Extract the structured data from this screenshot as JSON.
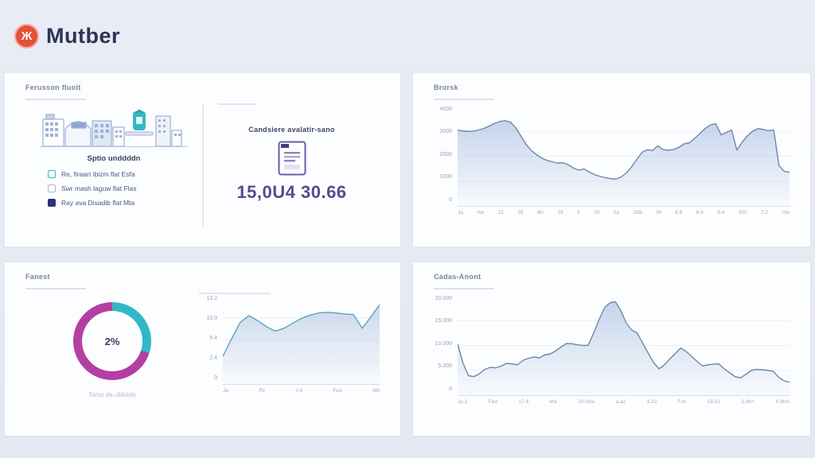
{
  "brand": {
    "name": "Mutber",
    "logo_glyph": "Ж",
    "logo_color": "#e44f39"
  },
  "cards": {
    "spots": {
      "title": "Ferusson fluoit",
      "illustration_caption": "Sptio unddddn",
      "items": [
        {
          "label": "Re, firaart ibizm flat Esfa",
          "checkbox": "teal-outline"
        },
        {
          "label": "Swr mash laguw flat Flas",
          "checkbox": "gray-outline"
        },
        {
          "label": "Ray ava Disadib flat Mta",
          "checkbox": "filled"
        }
      ],
      "right": {
        "caption": "Candsiere avalatir-sano",
        "value": "15,0U4 30.66"
      }
    },
    "brorsk": {
      "title": "Brorsk"
    },
    "fanest": {
      "title": "Fanest",
      "donut": {
        "percent_label": "2%",
        "caption": "Tarso da ublidaly",
        "teal_pct": 30,
        "magenta_pct": 70,
        "teal": "#31b8c6",
        "magenta": "#b43fa2"
      }
    },
    "cadas": {
      "title": "Cadas-Anont"
    }
  },
  "chart_data": [
    {
      "type": "area",
      "title": "Brorsk",
      "line": "#6e88ab",
      "fill": "#aec3e4",
      "ylim": [
        0,
        4000
      ],
      "y_labels": [
        "4000",
        "3000",
        "2000",
        "1000",
        "0"
      ],
      "x_labels": [
        "Ja",
        "Aw",
        "22",
        "35",
        "Bn",
        "18",
        "9",
        "20",
        "2a",
        "Obk",
        "W",
        "6.8",
        "6.9",
        "8.4",
        "302",
        "7.2",
        "Uw"
      ],
      "values": [
        3050,
        3020,
        3000,
        3010,
        3060,
        3120,
        3220,
        3320,
        3400,
        3430,
        3380,
        3150,
        2820,
        2480,
        2230,
        2060,
        1920,
        1830,
        1780,
        1720,
        1740,
        1660,
        1520,
        1440,
        1490,
        1360,
        1260,
        1190,
        1140,
        1100,
        1080,
        1160,
        1320,
        1570,
        1870,
        2160,
        2260,
        2230,
        2420,
        2270,
        2240,
        2270,
        2360,
        2500,
        2540,
        2720,
        2920,
        3120,
        3260,
        3310,
        2860,
        2960,
        3060,
        2250,
        2560,
        2820,
        3010,
        3110,
        3080,
        3030,
        3060,
        1620,
        1390,
        1360
      ]
    },
    {
      "type": "area",
      "title": "",
      "line": "#57a5c0",
      "fill": "#b5c8e3",
      "ylim": [
        0,
        16
      ],
      "y_labels": [
        "13.2",
        "10.0",
        "5.4",
        "2.4",
        "0"
      ],
      "x_labels": [
        "Ja",
        "Fb",
        "J-4",
        "Fed",
        "Mb"
      ],
      "values": [
        5.0,
        8.2,
        11.2,
        12.4,
        11.5,
        10.4,
        9.6,
        10.1,
        11.0,
        11.9,
        12.5,
        12.9,
        13.0,
        12.9,
        12.7,
        12.6,
        10.1,
        12.2,
        14.4
      ]
    },
    {
      "type": "area",
      "title": "Cadas-Anont",
      "line": "#6e88ab",
      "fill": "#aec3e4",
      "ylim": [
        0,
        20000
      ],
      "y_labels": [
        "20.000",
        "15.000",
        "10.000",
        "5.000",
        "0"
      ],
      "x_labels": [
        "Ja 2",
        "Fed",
        "17.4",
        "Ma",
        "20-Nov",
        "a.a2",
        "3.32",
        "F.m",
        "19.51",
        "3.4b+",
        "4.3km"
      ],
      "values": [
        10300,
        6400,
        3900,
        3750,
        4300,
        5200,
        5600,
        5500,
        5850,
        6400,
        6300,
        6100,
        7000,
        7400,
        7700,
        7500,
        8100,
        8300,
        8900,
        9700,
        10400,
        10350,
        10150,
        10000,
        10050,
        12500,
        15200,
        17600,
        18600,
        18800,
        17000,
        14500,
        13100,
        12500,
        10500,
        8500,
        6600,
        5300,
        6100,
        7300,
        8400,
        9500,
        8800,
        7800,
        6800,
        5900,
        6100,
        6250,
        6300,
        5300,
        4500,
        3700,
        3500,
        4200,
        5000,
        5200,
        5100,
        5000,
        4800,
        3600,
        2900,
        2600
      ]
    }
  ]
}
